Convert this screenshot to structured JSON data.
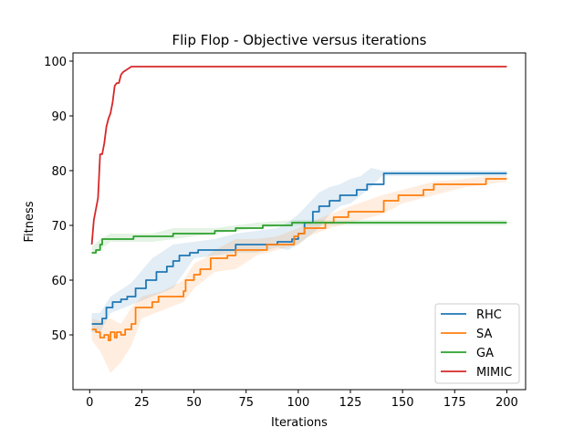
{
  "chart_data": {
    "type": "line",
    "title": "Flip Flop - Objective versus iterations",
    "xlabel": "Iterations",
    "ylabel": "Fitness",
    "xlim": [
      -8,
      209
    ],
    "ylim": [
      40,
      101.5
    ],
    "xticks": [
      0,
      25,
      50,
      75,
      100,
      125,
      150,
      175,
      200
    ],
    "yticks": [
      50,
      60,
      70,
      80,
      90,
      100
    ],
    "grid": false,
    "legend_position": "lower-right",
    "series": [
      {
        "name": "RHC",
        "color": "#1f77b4",
        "step": true,
        "points": [
          [
            1,
            52
          ],
          [
            5,
            52
          ],
          [
            6,
            53
          ],
          [
            8,
            55
          ],
          [
            10,
            55
          ],
          [
            11,
            56
          ],
          [
            14,
            56
          ],
          [
            15,
            56.5
          ],
          [
            18,
            57
          ],
          [
            22,
            58.5
          ],
          [
            27,
            60
          ],
          [
            32,
            61.5
          ],
          [
            37,
            62.5
          ],
          [
            40,
            63.5
          ],
          [
            43,
            64.5
          ],
          [
            48,
            65
          ],
          [
            52,
            65.5
          ],
          [
            70,
            66.5
          ],
          [
            90,
            67
          ],
          [
            97,
            67.5
          ],
          [
            100,
            68.5
          ],
          [
            103,
            70.5
          ],
          [
            107,
            72.5
          ],
          [
            110,
            73.5
          ],
          [
            115,
            74.5
          ],
          [
            120,
            75.5
          ],
          [
            128,
            76.5
          ],
          [
            133,
            77.5
          ],
          [
            141,
            79.5
          ],
          [
            200,
            79.5
          ]
        ],
        "band": [
          [
            1,
            50.5,
            54
          ],
          [
            5,
            50.5,
            54
          ],
          [
            10,
            54,
            57
          ],
          [
            20,
            55.5,
            59.5
          ],
          [
            30,
            57,
            64
          ],
          [
            40,
            58.5,
            66.5
          ],
          [
            50,
            64,
            67
          ],
          [
            60,
            64.5,
            67.5
          ],
          [
            70,
            65,
            68.5
          ],
          [
            80,
            65,
            69
          ],
          [
            90,
            66,
            69.5
          ],
          [
            95,
            65.5,
            70.5
          ],
          [
            100,
            66.5,
            72
          ],
          [
            105,
            68,
            74
          ],
          [
            110,
            69.5,
            76
          ],
          [
            115,
            72,
            77
          ],
          [
            120,
            73.5,
            77.5
          ],
          [
            125,
            74,
            78.5
          ],
          [
            130,
            75.5,
            79
          ],
          [
            135,
            77,
            80.5
          ],
          [
            140,
            79,
            80
          ],
          [
            200,
            79,
            80
          ]
        ]
      },
      {
        "name": "SA",
        "color": "#ff7f0e",
        "step": true,
        "points": [
          [
            1,
            51
          ],
          [
            3,
            50.5
          ],
          [
            5,
            49.5
          ],
          [
            7,
            50
          ],
          [
            9,
            49
          ],
          [
            10,
            50.5
          ],
          [
            12,
            49.5
          ],
          [
            13,
            50.5
          ],
          [
            15,
            50
          ],
          [
            17,
            51
          ],
          [
            20,
            52
          ],
          [
            22,
            55
          ],
          [
            30,
            56
          ],
          [
            33,
            57
          ],
          [
            45,
            58
          ],
          [
            46,
            60
          ],
          [
            50,
            61
          ],
          [
            53,
            62
          ],
          [
            58,
            64
          ],
          [
            66,
            64.5
          ],
          [
            70,
            65.5
          ],
          [
            85,
            66.5
          ],
          [
            98,
            68
          ],
          [
            100,
            68.5
          ],
          [
            103,
            69.5
          ],
          [
            113,
            70.5
          ],
          [
            117,
            71.5
          ],
          [
            124,
            72.5
          ],
          [
            141,
            74.5
          ],
          [
            148,
            75.5
          ],
          [
            160,
            76.5
          ],
          [
            165,
            77.5
          ],
          [
            190,
            78.5
          ],
          [
            200,
            78.5
          ]
        ],
        "band": [
          [
            1,
            49,
            53
          ],
          [
            5,
            47,
            52.5
          ],
          [
            10,
            43,
            53
          ],
          [
            15,
            45,
            52
          ],
          [
            20,
            48,
            55
          ],
          [
            25,
            53,
            57
          ],
          [
            35,
            54.5,
            58
          ],
          [
            45,
            56,
            60
          ],
          [
            50,
            58.5,
            63
          ],
          [
            55,
            60,
            64
          ],
          [
            60,
            61.5,
            65.5
          ],
          [
            70,
            62,
            67.5
          ],
          [
            80,
            64.5,
            67.5
          ],
          [
            90,
            65.5,
            68
          ],
          [
            100,
            66.5,
            69.5
          ],
          [
            105,
            68,
            70.5
          ],
          [
            115,
            69.5,
            72
          ],
          [
            125,
            70.5,
            73.5
          ],
          [
            140,
            72,
            75.5
          ],
          [
            150,
            74,
            76.5
          ],
          [
            165,
            75.5,
            78
          ],
          [
            180,
            77,
            78.5
          ],
          [
            190,
            77.5,
            79
          ],
          [
            200,
            78,
            79
          ]
        ]
      },
      {
        "name": "GA",
        "color": "#2ca02c",
        "step": true,
        "points": [
          [
            1,
            65
          ],
          [
            3,
            65.5
          ],
          [
            5,
            66.5
          ],
          [
            6,
            67.5
          ],
          [
            20,
            67.5
          ],
          [
            21,
            68
          ],
          [
            40,
            68.5
          ],
          [
            60,
            69
          ],
          [
            70,
            69.5
          ],
          [
            83,
            70
          ],
          [
            97,
            70.5
          ],
          [
            200,
            70.5
          ]
        ],
        "band": [
          [
            1,
            64.5,
            66
          ],
          [
            5,
            65.5,
            67.5
          ],
          [
            10,
            67,
            68.5
          ],
          [
            30,
            67,
            68.5
          ],
          [
            40,
            67.5,
            69.5
          ],
          [
            60,
            68.5,
            69.5
          ],
          [
            80,
            69.5,
            70.5
          ],
          [
            100,
            70,
            71
          ],
          [
            200,
            70,
            71
          ]
        ]
      },
      {
        "name": "MIMIC",
        "color": "#d62728",
        "step": false,
        "points": [
          [
            1,
            66.5
          ],
          [
            2,
            71
          ],
          [
            3,
            73
          ],
          [
            4,
            75
          ],
          [
            5,
            83
          ],
          [
            6,
            83
          ],
          [
            7,
            85
          ],
          [
            8,
            88
          ],
          [
            9,
            89.5
          ],
          [
            10,
            90.5
          ],
          [
            11,
            92.5
          ],
          [
            12,
            95.5
          ],
          [
            13,
            96
          ],
          [
            14,
            96
          ],
          [
            15,
            97.5
          ],
          [
            16,
            98
          ],
          [
            18,
            98.5
          ],
          [
            20,
            99
          ],
          [
            200,
            99
          ]
        ],
        "band": []
      }
    ]
  }
}
